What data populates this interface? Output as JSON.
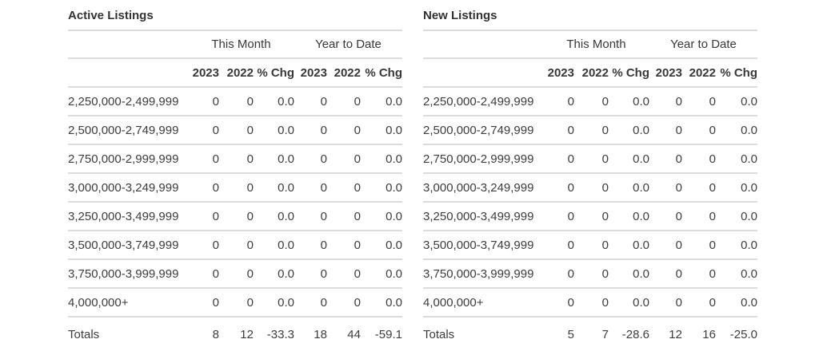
{
  "colors": {
    "text": "#3d3d3d",
    "heading": "#333333",
    "divider": "#dcdcdc",
    "background": "#ffffff"
  },
  "tables": [
    {
      "title": "Active Listings",
      "group_headers": [
        "This Month",
        "Year to Date"
      ],
      "column_headers": [
        "2023",
        "2022",
        "% Chg",
        "2023",
        "2022",
        "% Chg"
      ],
      "rows": [
        {
          "label": "2,250,000-2,499,999",
          "values": [
            "0",
            "0",
            "0.0",
            "0",
            "0",
            "0.0"
          ]
        },
        {
          "label": "2,500,000-2,749,999",
          "values": [
            "0",
            "0",
            "0.0",
            "0",
            "0",
            "0.0"
          ]
        },
        {
          "label": "2,750,000-2,999,999",
          "values": [
            "0",
            "0",
            "0.0",
            "0",
            "0",
            "0.0"
          ]
        },
        {
          "label": "3,000,000-3,249,999",
          "values": [
            "0",
            "0",
            "0.0",
            "0",
            "0",
            "0.0"
          ]
        },
        {
          "label": "3,250,000-3,499,999",
          "values": [
            "0",
            "0",
            "0.0",
            "0",
            "0",
            "0.0"
          ]
        },
        {
          "label": "3,500,000-3,749,999",
          "values": [
            "0",
            "0",
            "0.0",
            "0",
            "0",
            "0.0"
          ]
        },
        {
          "label": "3,750,000-3,999,999",
          "values": [
            "0",
            "0",
            "0.0",
            "0",
            "0",
            "0.0"
          ]
        },
        {
          "label": "4,000,000+",
          "values": [
            "0",
            "0",
            "0.0",
            "0",
            "0",
            "0.0"
          ]
        }
      ],
      "totals": {
        "label": "Totals",
        "values": [
          "8",
          "12",
          "-33.3",
          "18",
          "44",
          "-59.1"
        ]
      }
    },
    {
      "title": "New Listings",
      "group_headers": [
        "This Month",
        "Year to Date"
      ],
      "column_headers": [
        "2023",
        "2022",
        "% Chg",
        "2023",
        "2022",
        "% Chg"
      ],
      "rows": [
        {
          "label": "2,250,000-2,499,999",
          "values": [
            "0",
            "0",
            "0.0",
            "0",
            "0",
            "0.0"
          ]
        },
        {
          "label": "2,500,000-2,749,999",
          "values": [
            "0",
            "0",
            "0.0",
            "0",
            "0",
            "0.0"
          ]
        },
        {
          "label": "2,750,000-2,999,999",
          "values": [
            "0",
            "0",
            "0.0",
            "0",
            "0",
            "0.0"
          ]
        },
        {
          "label": "3,000,000-3,249,999",
          "values": [
            "0",
            "0",
            "0.0",
            "0",
            "0",
            "0.0"
          ]
        },
        {
          "label": "3,250,000-3,499,999",
          "values": [
            "0",
            "0",
            "0.0",
            "0",
            "0",
            "0.0"
          ]
        },
        {
          "label": "3,500,000-3,749,999",
          "values": [
            "0",
            "0",
            "0.0",
            "0",
            "0",
            "0.0"
          ]
        },
        {
          "label": "3,750,000-3,999,999",
          "values": [
            "0",
            "0",
            "0.0",
            "0",
            "0",
            "0.0"
          ]
        },
        {
          "label": "4,000,000+",
          "values": [
            "0",
            "0",
            "0.0",
            "0",
            "0",
            "0.0"
          ]
        }
      ],
      "totals": {
        "label": "Totals",
        "values": [
          "5",
          "7",
          "-28.6",
          "12",
          "16",
          "-25.0"
        ]
      }
    }
  ]
}
